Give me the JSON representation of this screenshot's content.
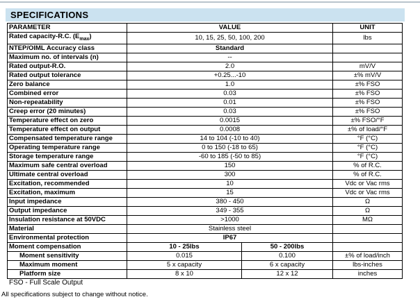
{
  "page": {
    "title": "SPECIFICATIONS",
    "footnote_fso": "FSO - Full Scale Output",
    "footnote_change": "All specifications subject to change without notice."
  },
  "accent_color": "#cbe2f0",
  "table": {
    "headers": [
      "PARAMETER",
      "VALUE",
      "UNIT"
    ],
    "rows": [
      {
        "param": "Rated capacity-R.C. (E",
        "sub": "max",
        "post": ")",
        "value": "10, 15, 25, 50, 100, 200",
        "unit": "lbs"
      },
      {
        "param": "NTEP/OIML Accuracy class",
        "value": "Standard",
        "value_bold": true,
        "unit": ""
      },
      {
        "param": "Maximum no. of intervals (n)",
        "value": "--",
        "unit": ""
      },
      {
        "param": "Rated output-R.O.",
        "value": "2.0",
        "unit": "mV/V"
      },
      {
        "param": "Rated output tolerance",
        "value": "+0.25...-10",
        "unit": "±% mV/V"
      },
      {
        "param": "Zero balance",
        "value": "1.0",
        "unit": "±% FSO"
      },
      {
        "param": "Combined error",
        "value": "0.03",
        "unit": "±% FSO"
      },
      {
        "param": "Non-repeatability",
        "value": "0.01",
        "unit": "±% FSO"
      },
      {
        "param": "Creep error (20 minutes)",
        "value": "0.03",
        "unit": "±% FSO"
      },
      {
        "param": "Temperature effect on zero",
        "value": "0.0015",
        "unit": "±% FSO/°F"
      },
      {
        "param": "Temperature effect on output",
        "value": "0.0008",
        "unit": "±% of load/°F"
      },
      {
        "param": "Compensated temperature range",
        "value": "14 to 104 (-10 to 40)",
        "unit": "°F (°C)"
      },
      {
        "param": "Operating temperature range",
        "value": "0 to 150 (-18 to 65)",
        "unit": "°F (°C)"
      },
      {
        "param": "Storage temperature range",
        "value": "-60 to 185 (-50 to 85)",
        "unit": "°F (°C)"
      },
      {
        "param": "Maximum safe central overload",
        "value": "150",
        "unit": "% of R.C."
      },
      {
        "param": "Ultimate central overload",
        "value": "300",
        "unit": "% of R.C."
      },
      {
        "param": "Excitation, recommended",
        "value": "10",
        "unit": "Vdc or Vac rms"
      },
      {
        "param": "Excitation, maximum",
        "value": "15",
        "unit": "Vdc or Vac rms"
      },
      {
        "param": "Input impedance",
        "value": "380 - 450",
        "unit": "Ω"
      },
      {
        "param": "Output impedance",
        "value": "349 - 355",
        "unit": "Ω"
      },
      {
        "param": "Insulation resistance at 50VDC",
        "value": ">1000",
        "unit": "MΩ"
      },
      {
        "param": "Material",
        "value": "Stainless steel",
        "unit": ""
      },
      {
        "param": "Environmental protection",
        "value": "IP67",
        "value_bold": true,
        "unit": ""
      },
      {
        "param": "Moment compensation",
        "col1": "10 - 25lbs",
        "col2": "50 - 200lbs",
        "cols_bold": true,
        "unit": ""
      },
      {
        "param": "Moment sensitivity",
        "indent": true,
        "col1": "0.015",
        "col2": "0.100",
        "unit": "±% of load/inch"
      },
      {
        "param": "Maximum moment",
        "indent": true,
        "col1": "5 x capacity",
        "col2": "6 x capacity",
        "unit": "lbs-inches"
      },
      {
        "param": "Platform size",
        "indent": true,
        "col1": "8 x 10",
        "col2": "12 x 12",
        "unit": "inches"
      }
    ]
  }
}
